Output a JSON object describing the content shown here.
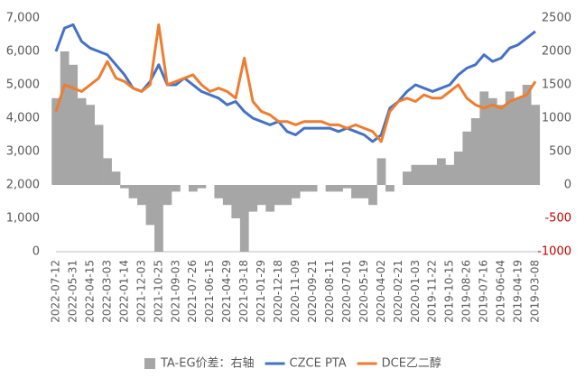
{
  "chart_data": {
    "type": "line",
    "categories": [
      "2022-07-12",
      null,
      "2022-05-31",
      null,
      "2022-04-15",
      null,
      "2022-03-03",
      null,
      "2022-01-14",
      null,
      "2021-12-03",
      null,
      "2021-10-25",
      null,
      "2021-09-03",
      null,
      "2021-07-26",
      null,
      "2021-06-15",
      null,
      "2021-04-29",
      null,
      "2021-03-18",
      null,
      "2021-01-29",
      null,
      "2020-12-18",
      null,
      "2020-11-09",
      null,
      "2020-09-21",
      null,
      "2020-08-11",
      null,
      "2020-07-01",
      null,
      "2020-05-19",
      null,
      "2020-04-02",
      null,
      "2020-02-21",
      null,
      "2020-01-03",
      null,
      "2019-11-22",
      null,
      "2019-10-15",
      null,
      "2019-08-26",
      null,
      "2019-07-16",
      null,
      "2019-06-04",
      null,
      "2019-04-19",
      null,
      "2019-03-08"
    ],
    "series": [
      {
        "name": "TA-EG价差：右轴",
        "color": "#a6a6a6",
        "axis": "y2",
        "type": "area",
        "values": [
          1300,
          2000,
          1800,
          1300,
          1200,
          900,
          400,
          200,
          -50,
          -200,
          -300,
          -600,
          -1000,
          -300,
          -100,
          0,
          -100,
          -50,
          0,
          -200,
          -300,
          -500,
          -1000,
          -400,
          -300,
          -400,
          -300,
          -300,
          -200,
          -100,
          -100,
          0,
          -100,
          -100,
          -50,
          -200,
          -200,
          -300,
          400,
          -100,
          0,
          200,
          300,
          300,
          300,
          400,
          300,
          500,
          800,
          1000,
          1400,
          1300,
          1200,
          1400,
          1300,
          1500,
          1200
        ]
      },
      {
        "name": "CZCE PTA",
        "color": "#4472c4",
        "values": [
          6000,
          6700,
          6800,
          6300,
          6100,
          6000,
          5900,
          5600,
          5300,
          4900,
          4800,
          5100,
          5600,
          5000,
          5000,
          5200,
          5000,
          4800,
          4700,
          4600,
          4400,
          4500,
          4200,
          4000,
          3900,
          3800,
          3900,
          3600,
          3500,
          3700,
          3700,
          3700,
          3700,
          3600,
          3700,
          3600,
          3500,
          3300,
          3500,
          4300,
          4500,
          4800,
          5000,
          4900,
          4800,
          4900,
          5000,
          5300,
          5500,
          5600,
          5900,
          5700,
          5800,
          6100,
          6200,
          6400,
          6600
        ]
      },
      {
        "name": "DCE乙二醇",
        "color": "#ed7d31",
        "values": [
          4200,
          5000,
          4900,
          4800,
          5000,
          5200,
          5700,
          5200,
          5100,
          4900,
          4800,
          5000,
          6800,
          5000,
          5100,
          5200,
          5300,
          5000,
          4800,
          4900,
          4800,
          4600,
          5800,
          4500,
          4200,
          4100,
          3900,
          3900,
          3800,
          3900,
          3900,
          3900,
          3800,
          3800,
          3700,
          3800,
          3700,
          3600,
          3300,
          4200,
          4500,
          4600,
          4500,
          4700,
          4600,
          4600,
          4800,
          5000,
          4600,
          4400,
          4300,
          4400,
          4300,
          4500,
          4600,
          4700,
          5100
        ]
      }
    ],
    "ylim": [
      0,
      7000
    ],
    "yticks": [
      0,
      {
        "value": 1000,
        "label": "1,000"
      },
      {
        "value": 2000,
        "label": "2,000"
      },
      {
        "value": 3000,
        "label": "3,000"
      },
      {
        "value": 4000,
        "label": "4,000"
      },
      {
        "value": 5000,
        "label": "5,000"
      },
      {
        "value": 6000,
        "label": "6,000"
      },
      {
        "value": 7000,
        "label": "7,000"
      }
    ],
    "y2lim": [
      -1000,
      2500
    ],
    "y2ticks": [
      -1000,
      -500,
      0,
      500,
      1000,
      1500,
      2000,
      2500
    ],
    "negative_tick_color": "#c00000",
    "legend": "bottom"
  }
}
